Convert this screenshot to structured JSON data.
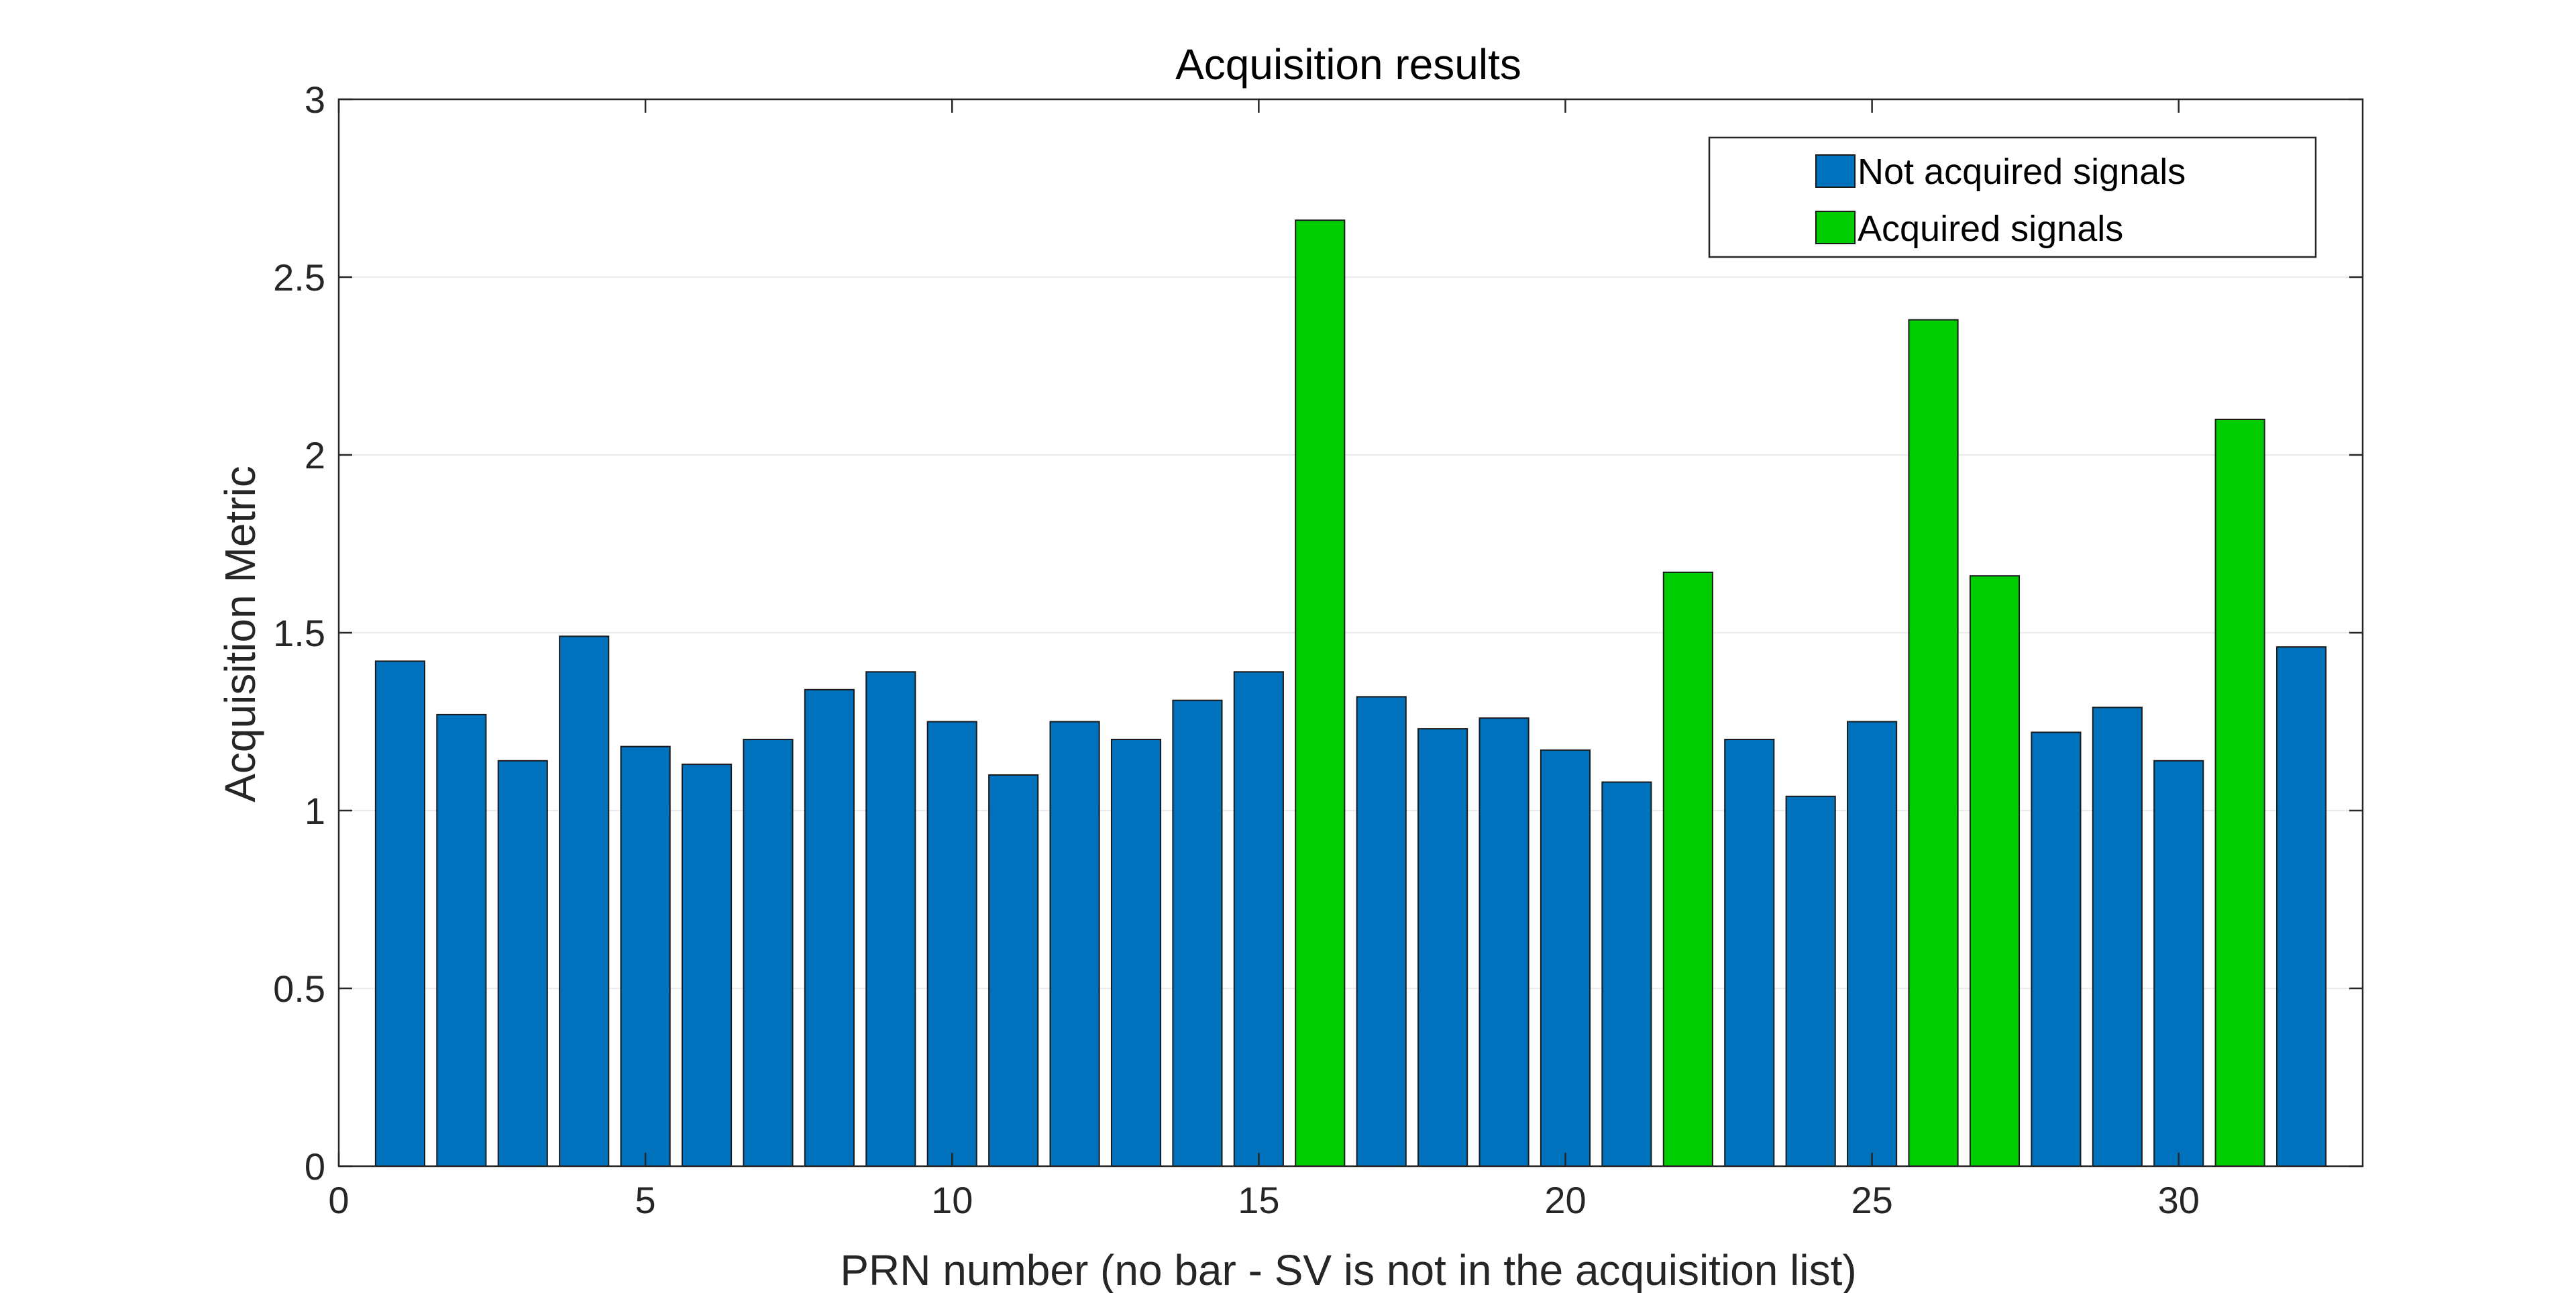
{
  "chart_data": {
    "type": "bar",
    "title": "Acquisition results",
    "xlabel": "PRN number (no bar - SV is not in the acquisition list)",
    "ylabel": "Acquisition Metric",
    "xlim": [
      0,
      33
    ],
    "ylim": [
      0,
      3
    ],
    "xticks": [
      0,
      5,
      10,
      15,
      20,
      25,
      30
    ],
    "xtick_labels": [
      "0",
      "5",
      "10",
      "15",
      "20",
      "25",
      "30"
    ],
    "yticks": [
      0,
      0.5,
      1,
      1.5,
      2,
      2.5,
      3
    ],
    "ytick_labels": [
      "0",
      "0.5",
      "1",
      "1.5",
      "2",
      "2.5",
      "3"
    ],
    "grid": "y",
    "legend_position": "top-right",
    "series": [
      {
        "name": "Not acquired signals",
        "color": "#0072bd",
        "x": [
          1,
          2,
          3,
          4,
          5,
          6,
          7,
          8,
          9,
          10,
          11,
          12,
          13,
          14,
          15,
          17,
          18,
          19,
          20,
          21,
          23,
          24,
          25,
          28,
          29,
          30,
          32
        ],
        "values": [
          1.42,
          1.27,
          1.14,
          1.49,
          1.18,
          1.13,
          1.2,
          1.34,
          1.39,
          1.25,
          1.1,
          1.25,
          1.2,
          1.31,
          1.39,
          1.32,
          1.23,
          1.26,
          1.17,
          1.08,
          1.2,
          1.04,
          1.25,
          1.22,
          1.29,
          1.14,
          1.46
        ]
      },
      {
        "name": "Acquired signals",
        "color": "#00cc00",
        "x": [
          16,
          22,
          26,
          27,
          31
        ],
        "values": [
          2.66,
          1.67,
          2.38,
          1.66,
          2.1
        ]
      }
    ]
  }
}
